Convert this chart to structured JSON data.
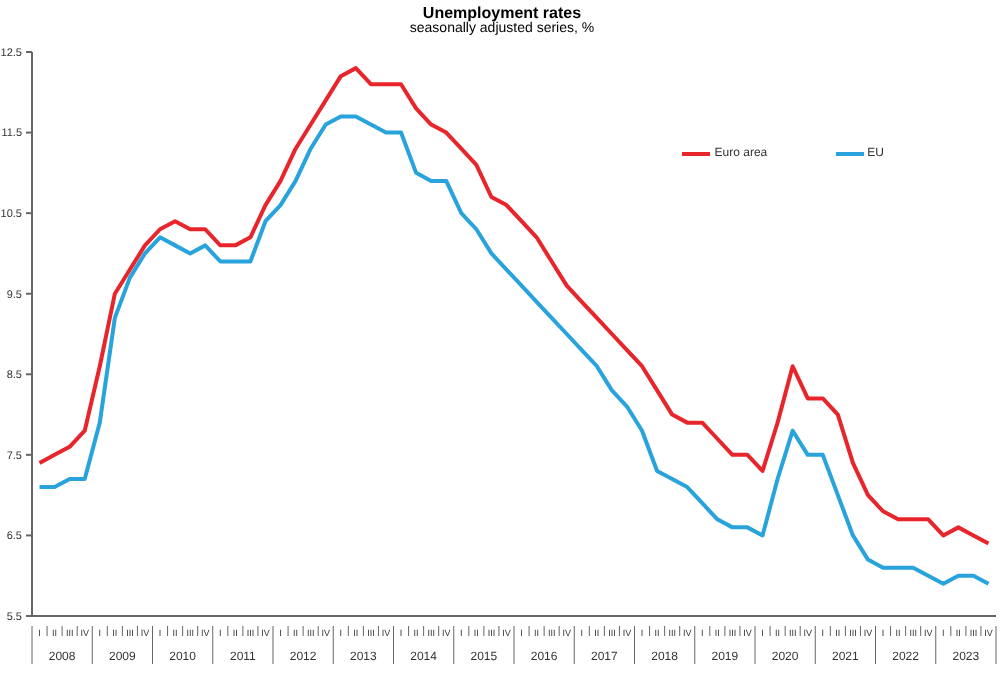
{
  "chart_data": {
    "type": "line",
    "title": "Unemployment rates",
    "subtitle": "seasonally adjusted series, %",
    "categories": [
      "I",
      "II",
      "III",
      "IV",
      "I",
      "II",
      "III",
      "IV",
      "I",
      "II",
      "III",
      "IV",
      "I",
      "II",
      "III",
      "IV",
      "I",
      "II",
      "III",
      "IV",
      "I",
      "II",
      "III",
      "IV",
      "I",
      "II",
      "III",
      "IV",
      "I",
      "II",
      "III",
      "IV",
      "I",
      "II",
      "III",
      "IV",
      "I",
      "II",
      "III",
      "IV",
      "I",
      "II",
      "III",
      "IV",
      "I",
      "II",
      "III",
      "IV",
      "I",
      "II",
      "III",
      "IV",
      "I",
      "II",
      "III",
      "IV",
      "I",
      "II",
      "III",
      "IV",
      "I",
      "II",
      "III",
      "IV"
    ],
    "series": [
      {
        "name": "Euro area",
        "color": "#e8252b",
        "values": [
          7.4,
          7.5,
          7.6,
          7.8,
          8.6,
          9.5,
          9.8,
          10.1,
          10.3,
          10.4,
          10.3,
          10.3,
          10.1,
          10.1,
          10.2,
          10.6,
          10.9,
          11.3,
          11.6,
          11.9,
          12.2,
          12.3,
          12.1,
          12.1,
          12.1,
          11.8,
          11.6,
          11.5,
          11.3,
          11.1,
          10.7,
          10.6,
          10.4,
          10.2,
          9.9,
          9.6,
          9.4,
          9.2,
          9.0,
          8.8,
          8.6,
          8.3,
          8.0,
          7.9,
          7.9,
          7.7,
          7.5,
          7.5,
          7.3,
          7.9,
          8.6,
          8.2,
          8.2,
          8.0,
          7.4,
          7.0,
          6.8,
          6.7,
          6.7,
          6.7,
          6.5,
          6.6,
          6.5,
          6.4
        ]
      },
      {
        "name": "EU",
        "color": "#29a3dc",
        "values": [
          7.1,
          7.1,
          7.2,
          7.2,
          7.9,
          9.2,
          9.7,
          10.0,
          10.2,
          10.1,
          10.0,
          10.1,
          9.9,
          9.9,
          9.9,
          10.4,
          10.6,
          10.9,
          11.3,
          11.6,
          11.7,
          11.7,
          11.6,
          11.5,
          11.5,
          11.0,
          10.9,
          10.9,
          10.5,
          10.3,
          10.0,
          9.8,
          9.6,
          9.4,
          9.2,
          9.0,
          8.8,
          8.6,
          8.3,
          8.1,
          7.8,
          7.3,
          7.2,
          7.1,
          6.9,
          6.7,
          6.6,
          6.6,
          6.5,
          7.2,
          7.8,
          7.5,
          7.5,
          7.0,
          6.5,
          6.2,
          6.1,
          6.1,
          6.1,
          6.0,
          5.9,
          6.0,
          6.0,
          5.9
        ]
      }
    ],
    "annotations": [
      "2008",
      "2009",
      "2010",
      "2011",
      "2012",
      "2013",
      "2014",
      "2015",
      "2016",
      "2017",
      "2018",
      "2019",
      "2020",
      "2021",
      "2022",
      "2023"
    ],
    "ylim": [
      5.5,
      12.5
    ],
    "yticks": [
      5.5,
      6.5,
      7.5,
      8.5,
      9.5,
      10.5,
      11.5,
      12.5
    ],
    "legend": "top right",
    "marker": "none",
    "line_style": "solid",
    "grid": false
  }
}
